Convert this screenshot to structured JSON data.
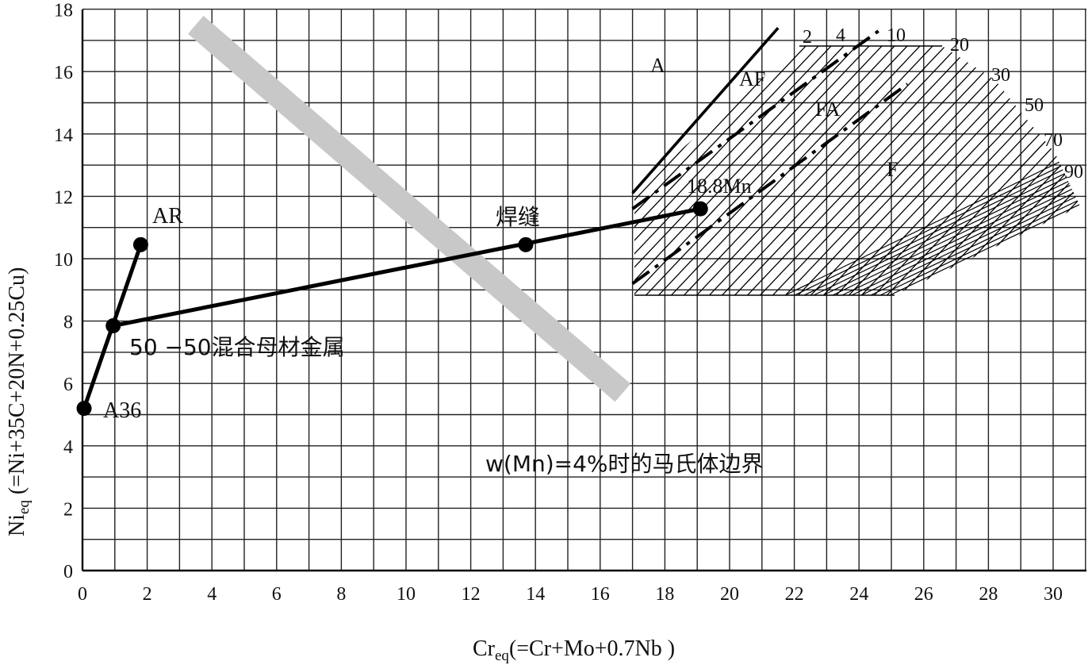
{
  "chart_data": {
    "type": "line",
    "title": "",
    "xlabel": {
      "main": "Cr",
      "sub": "eq",
      "rest": "(=Cr+Mo+0.7Nb )"
    },
    "ylabel": {
      "main": "Ni",
      "sub": "eq",
      "rest": " (=Ni+35C+20N+0.25Cu)"
    },
    "xlim": [
      0,
      31
    ],
    "ylim": [
      0,
      18
    ],
    "xticks": [
      0,
      2,
      4,
      6,
      8,
      10,
      12,
      14,
      16,
      18,
      20,
      22,
      24,
      26,
      28,
      30
    ],
    "yticks": [
      0,
      2,
      4,
      6,
      8,
      10,
      12,
      14,
      16,
      18
    ],
    "grid": true,
    "points": [
      {
        "name": "A36",
        "label": "A36",
        "x": 0.05,
        "y": 5.2
      },
      {
        "name": "AR",
        "label": "AR",
        "x": 1.8,
        "y": 10.45
      },
      {
        "name": "mix",
        "label": "50 −50混合母材金属",
        "x": 0.95,
        "y": 7.85
      },
      {
        "name": "weld",
        "label": "焊缝",
        "x": 13.7,
        "y": 10.45
      },
      {
        "name": "filler",
        "label": "18.8Mn",
        "x": 19.1,
        "y": 11.6
      }
    ],
    "lines": [
      {
        "name": "A36-AR",
        "from": "A36",
        "to": "AR"
      },
      {
        "name": "mix-filler",
        "from": "mix",
        "to": "filler"
      }
    ],
    "martensite_boundary": {
      "label": "w(Mn)=4%时的马氏体边界",
      "from": [
        3.5,
        17.5
      ],
      "to": [
        16.7,
        5.7
      ]
    },
    "phase_region": {
      "x_range": [
        17,
        31
      ],
      "y_range": [
        8.8,
        16.8
      ],
      "phase_labels": [
        "A",
        "AF",
        "FA",
        "F"
      ],
      "phase_boundaries": [
        {
          "name": "A/AF",
          "style": "solid",
          "from": [
            17,
            12.1
          ],
          "to": [
            21.5,
            17.4
          ]
        },
        {
          "name": "AF/FA",
          "style": "dashdot",
          "from": [
            17,
            11.6
          ],
          "to": [
            24.6,
            17.3
          ]
        },
        {
          "name": "FA/F",
          "style": "dashdot",
          "from": [
            17,
            9.2
          ],
          "to": [
            25.5,
            15.6
          ]
        }
      ],
      "ferrite_numbers": [
        "2",
        "4",
        "10",
        "20",
        "30",
        "50",
        "70",
        "90"
      ]
    }
  }
}
